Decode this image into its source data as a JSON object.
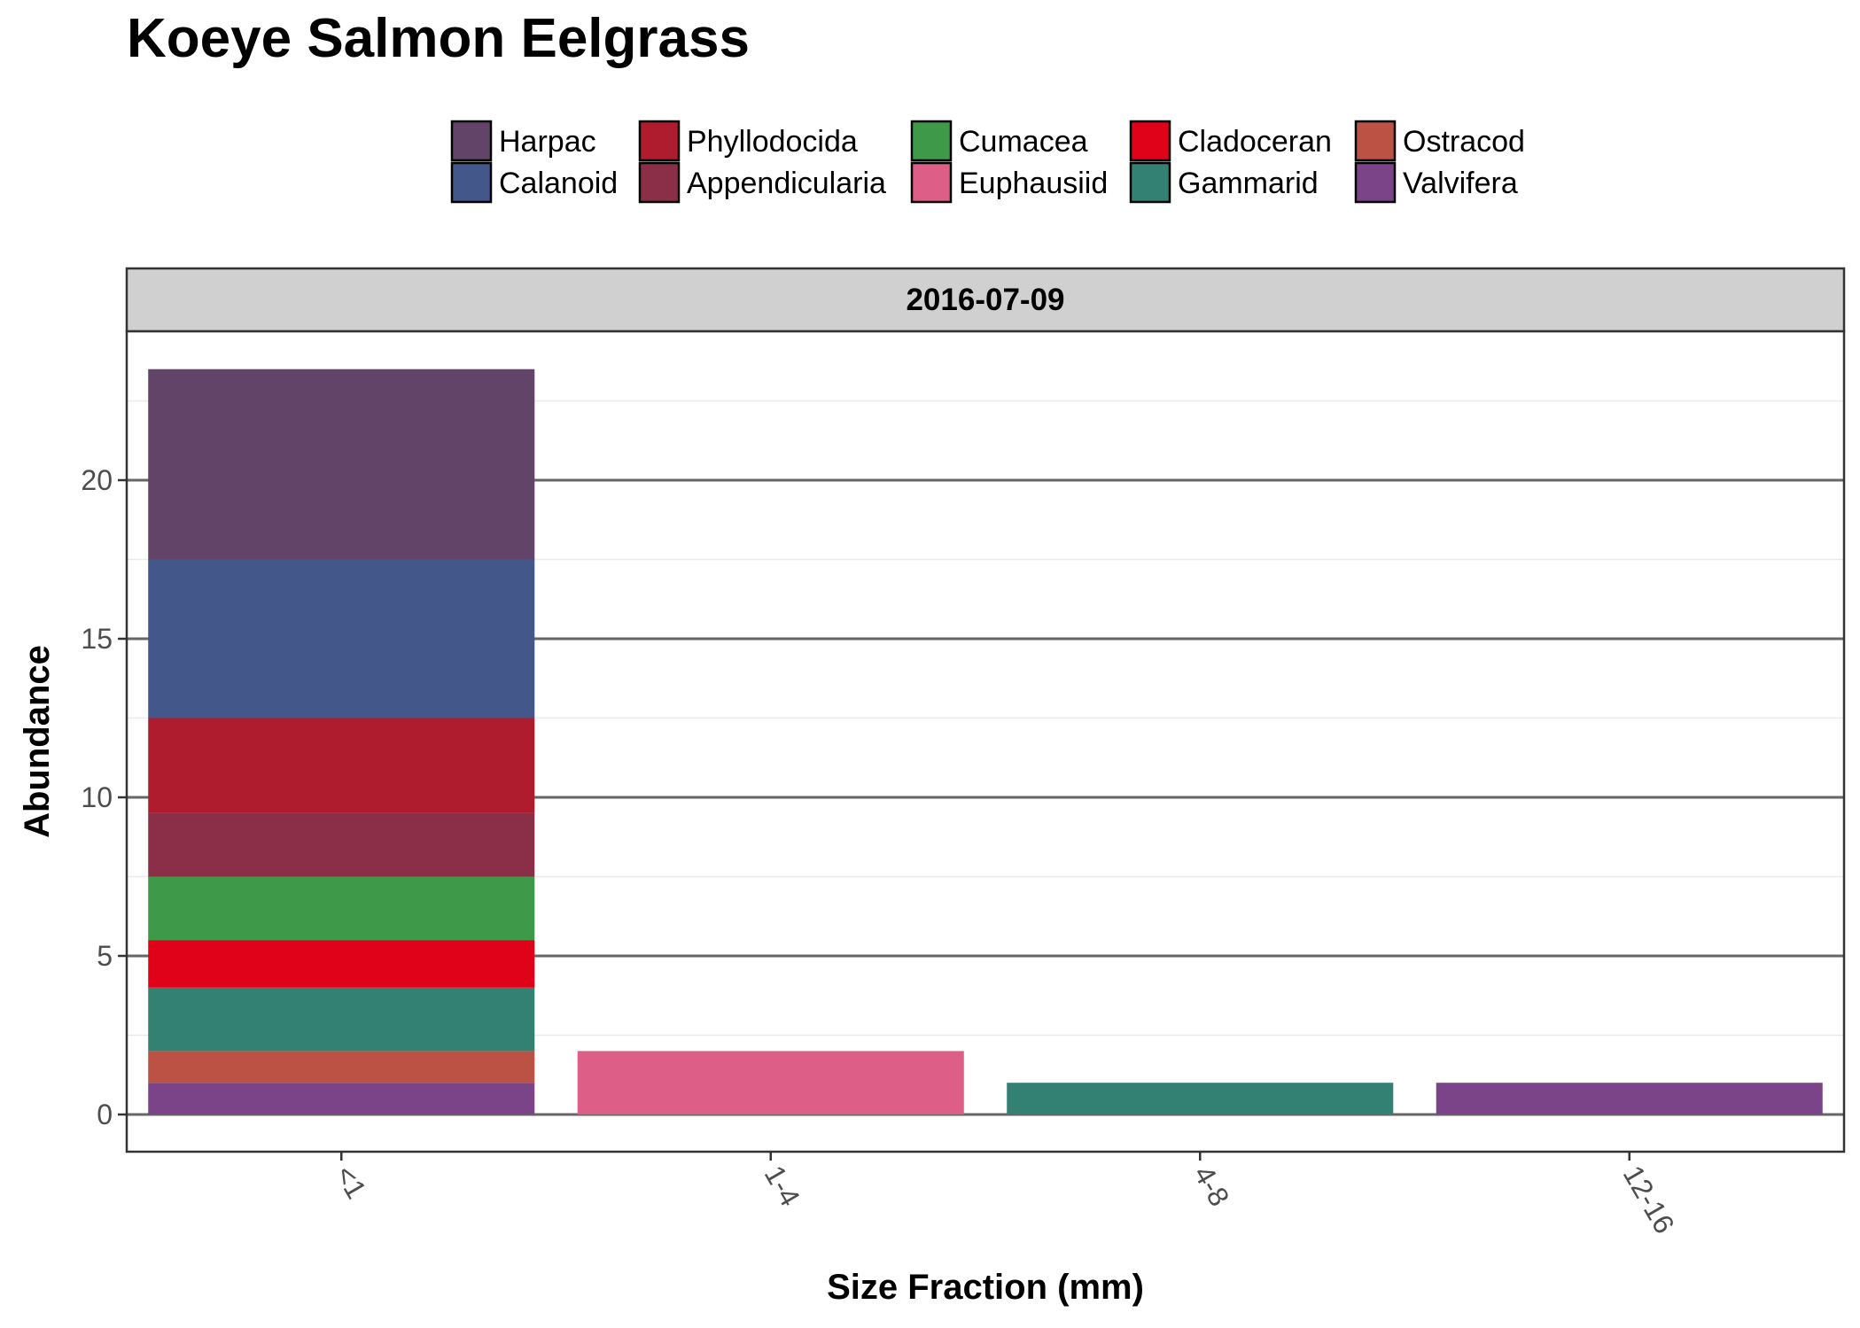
{
  "chart_data": {
    "type": "bar",
    "stacked": true,
    "title": "Koeye Salmon Eelgrass",
    "facet": "2016-07-09",
    "xlabel": "Size Fraction (mm)",
    "ylabel": "Abundance",
    "categories": [
      "<1",
      "1-4",
      "4-8",
      "12-16"
    ],
    "ylim": [
      0,
      24
    ],
    "yticks": [
      0,
      5,
      10,
      15,
      20
    ],
    "grid": true,
    "legend_position": "top",
    "series": [
      {
        "name": "Harpac",
        "color": "#634469",
        "values": [
          6,
          0,
          0,
          0
        ]
      },
      {
        "name": "Calanoid",
        "color": "#44578a",
        "values": [
          5,
          0,
          0,
          0
        ]
      },
      {
        "name": "Phyllodocida",
        "color": "#ae1c2e",
        "values": [
          3,
          0,
          0,
          0
        ]
      },
      {
        "name": "Appendicularia",
        "color": "#8b2f48",
        "values": [
          2,
          0,
          0,
          0
        ]
      },
      {
        "name": "Cumacea",
        "color": "#3e9a48",
        "values": [
          2,
          0,
          0,
          0
        ]
      },
      {
        "name": "Euphausiid",
        "color": "#dd5f88",
        "values": [
          0,
          2,
          0,
          0
        ]
      },
      {
        "name": "Cladoceran",
        "color": "#df0219",
        "values": [
          1.5,
          0,
          0,
          0
        ]
      },
      {
        "name": "Gammarid",
        "color": "#328173",
        "values": [
          2,
          0,
          1,
          0
        ]
      },
      {
        "name": "Ostracod",
        "color": "#bc5243",
        "values": [
          1,
          0,
          0,
          0
        ]
      },
      {
        "name": "Valvifera",
        "color": "#7c4488",
        "values": [
          1,
          0,
          0,
          1
        ]
      }
    ]
  }
}
